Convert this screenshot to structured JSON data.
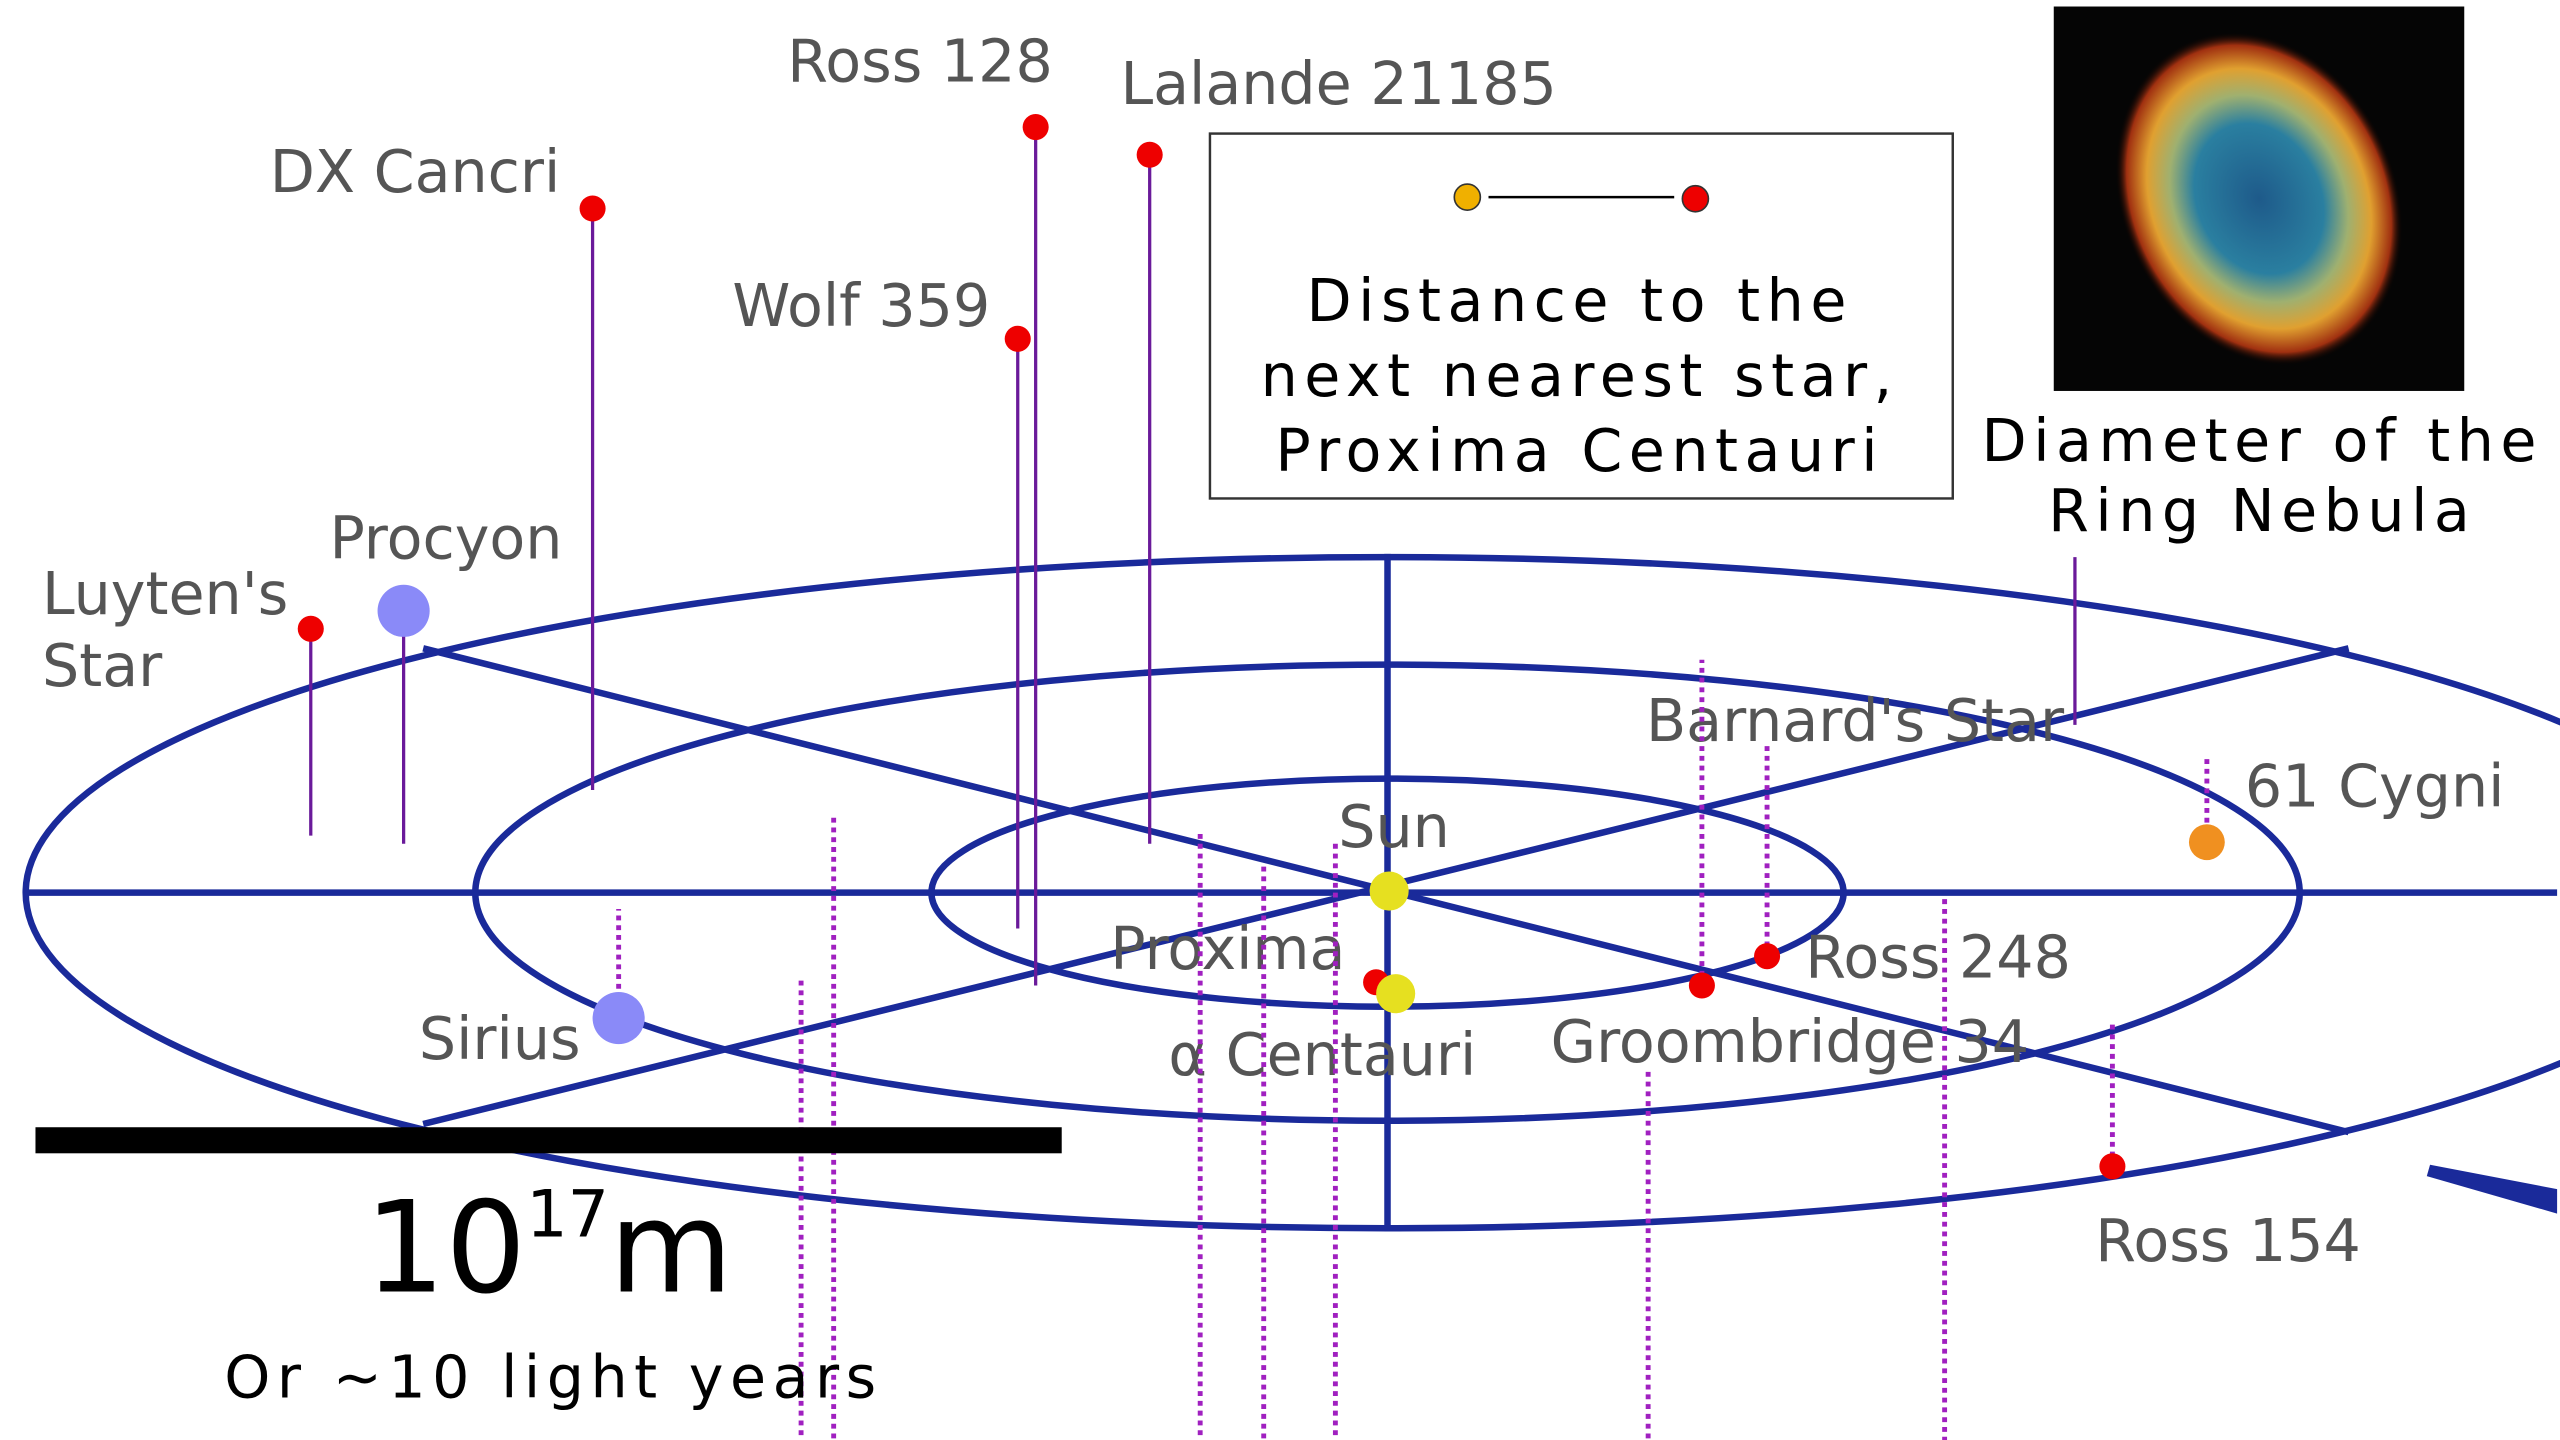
{
  "stars": [
    {
      "label": [
        "Ross 128"
      ]
    },
    {
      "label": [
        "Lalande 21185"
      ]
    },
    {
      "label": [
        "DX Cancri"
      ]
    },
    {
      "label": [
        "Wolf 359"
      ]
    },
    {
      "label": [
        "Procyon"
      ]
    },
    {
      "label": [
        "Luyten's",
        "Star"
      ]
    },
    {
      "label": [
        "Barnard's Star"
      ]
    },
    {
      "label": [
        "61 Cygni"
      ]
    },
    {
      "label": [
        "Sun"
      ]
    },
    {
      "label": [
        "Proxima"
      ]
    },
    {
      "label": [
        "α Centauri"
      ]
    },
    {
      "label": [
        "Sirius"
      ]
    },
    {
      "label": [
        "Groombridge 34"
      ]
    },
    {
      "label": [
        "Ross 248"
      ]
    },
    {
      "label": [
        "Ross 154"
      ]
    }
  ],
  "legend": {
    "lines": [
      "Distance to the",
      "next nearest star,",
      "Proxima Centauri"
    ]
  },
  "nebula": {
    "lines": [
      "Diameter of the",
      "Ring Nebula"
    ]
  },
  "scale": {
    "base": "10",
    "exponent": "17",
    "unit": "m",
    "caption": "Or ~10 light years"
  }
}
